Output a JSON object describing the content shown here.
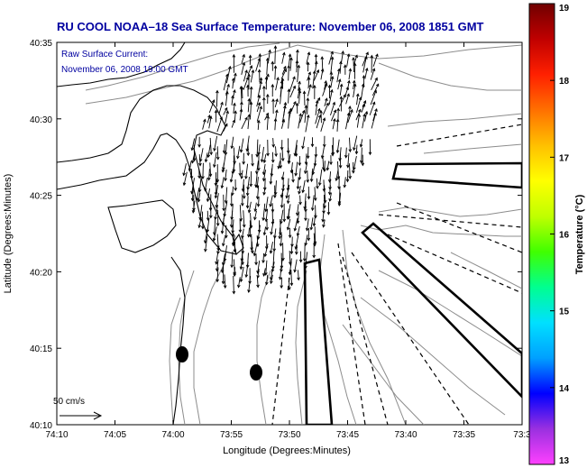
{
  "title": "RU COOL  NOAA–18  Sea Surface Temperature:  November 06, 2008 1851 GMT",
  "current_label_line1": "Raw Surface Current:",
  "current_label_line2": "November 06, 2008 19:00 GMT",
  "scale_label": "50 cm/s",
  "x_axis_label": "Longitude (Degrees:Minutes)",
  "y_axis_label": "Latitude (Degrees:Minutes)",
  "colorbar_label": "Temperature (°C)",
  "x_ticks": [
    "74:10",
    "74:05",
    "74:00",
    "73:55",
    "73:50",
    "73:45",
    "73:40",
    "73:35",
    "73:3"
  ],
  "y_ticks": [
    "40:35",
    "40:30",
    "40:25",
    "40:20",
    "40:15",
    "40:10"
  ],
  "colorbar_ticks": [
    "19",
    "18",
    "17",
    "16",
    "15",
    "14",
    "13"
  ],
  "colorbar_range": [
    13,
    19
  ],
  "colors": {
    "title": "#0000a0",
    "annotation": "#0000a0",
    "axis": "#000000",
    "contour": "#8c8c8c",
    "coast": "#000000"
  },
  "colorbar_stops": [
    "#ff40ff",
    "#9a30e0",
    "#0000ff",
    "#00a0ff",
    "#00e0ff",
    "#00ff90",
    "#40ff00",
    "#c0ff00",
    "#ffff00",
    "#ffc000",
    "#ff7000",
    "#ff2000",
    "#c00000",
    "#700000"
  ]
}
